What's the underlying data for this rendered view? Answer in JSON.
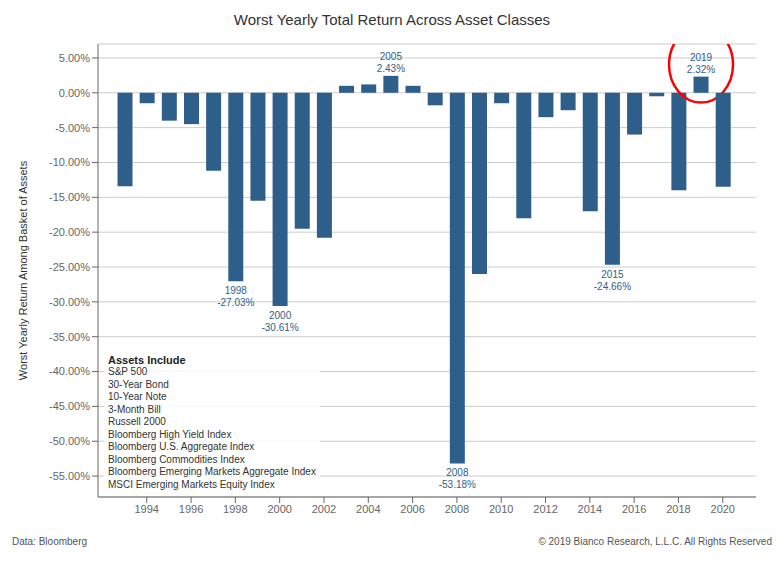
{
  "chart_data": {
    "type": "bar",
    "title": "Worst Yearly Total Return Across Asset Classes",
    "y_label": "Worst Yearly Return Among Basket of Assets",
    "x": [
      1993,
      1994,
      1995,
      1996,
      1997,
      1998,
      1999,
      2000,
      2001,
      2002,
      2003,
      2004,
      2005,
      2006,
      2007,
      2008,
      2009,
      2010,
      2011,
      2012,
      2013,
      2014,
      2015,
      2016,
      2017,
      2018,
      2019,
      2020
    ],
    "values": [
      -13.4,
      -1.5,
      -4.0,
      -4.5,
      -11.2,
      -27.03,
      -15.5,
      -30.61,
      -19.5,
      -20.8,
      1.0,
      1.2,
      2.43,
      1.0,
      -1.8,
      -53.18,
      -26.0,
      -1.5,
      -18.0,
      -3.5,
      -2.5,
      -17.0,
      -24.66,
      -6.0,
      -0.5,
      -14.0,
      2.32,
      -13.5
    ],
    "color": "#2e5f8a",
    "xlim": [
      1991.8,
      2021.5
    ],
    "xticks": [
      1994,
      1996,
      1998,
      2000,
      2002,
      2004,
      2006,
      2008,
      2010,
      2012,
      2014,
      2016,
      2018,
      2020
    ],
    "ylim": [
      -58,
      7
    ],
    "yticks": [
      {
        "value": 5.0,
        "label": "5.00%"
      },
      {
        "value": 0.0,
        "label": "0.00%"
      },
      {
        "value": -5.0,
        "label": "-5.00%"
      },
      {
        "value": -10.0,
        "label": "-10.00%"
      },
      {
        "value": -15.0,
        "label": "-15.00%"
      },
      {
        "value": -20.0,
        "label": "-20.00%"
      },
      {
        "value": -25.0,
        "label": "-25.00%"
      },
      {
        "value": -30.0,
        "label": "-30.00%"
      },
      {
        "value": -35.0,
        "label": "-35.00%"
      },
      {
        "value": -40.0,
        "label": "-40.00%"
      },
      {
        "value": -45.0,
        "label": "-45.00%"
      },
      {
        "value": -50.0,
        "label": "-50.00%"
      },
      {
        "value": -55.0,
        "label": "-55.00%"
      }
    ],
    "grid": true,
    "annotations": [
      {
        "x": 1998,
        "text": [
          "1998",
          "-27.03%"
        ]
      },
      {
        "x": 2000,
        "text": [
          "2000",
          "-30.61%"
        ]
      },
      {
        "x": 2005,
        "text": [
          "2005",
          "2.43%"
        ]
      },
      {
        "x": 2008,
        "text": [
          "2008",
          "-53.18%"
        ]
      },
      {
        "x": 2015,
        "text": [
          "2015",
          "-24.66%"
        ]
      },
      {
        "x": 2019,
        "text": [
          "2019",
          "2.32%"
        ]
      }
    ],
    "highlight": {
      "x": 2019,
      "color": "red"
    },
    "assets_title": "Assets Include",
    "assets": [
      "S&P 500",
      "30-Year Bond",
      "10-Year Note",
      "3-Month Bill",
      "Russell 2000",
      "Bloomberg High Yield Index",
      "Bloomberg U.S. Aggregate Index",
      "Bloomberg Commodities Index",
      "Bloomberg Emerging Markets Aggregate Index",
      "MSCI Emerging Markets Equity Index"
    ],
    "footnote_left": "Data: Bloomberg",
    "footnote_right": "© 2019 Bianco Research, L.L.C. All Rights Reserved"
  }
}
